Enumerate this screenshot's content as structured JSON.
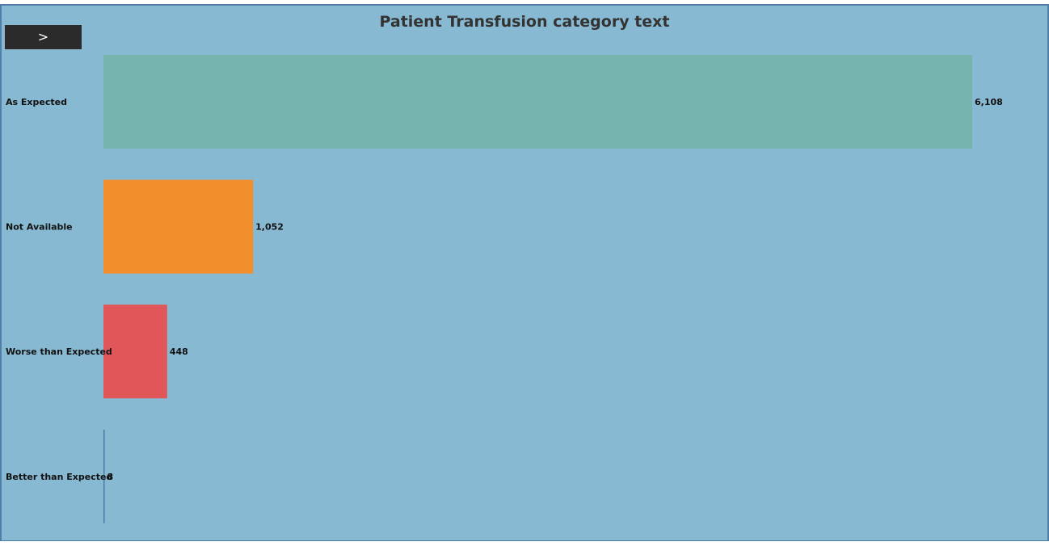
{
  "nav": {
    "expand_icon": "chevron-right-icon",
    "expand_glyph": ">"
  },
  "chart_data": {
    "type": "bar",
    "orientation": "horizontal",
    "title": "Patient Transfusion category text",
    "xlabel": "",
    "ylabel": "",
    "categories": [
      "As Expected",
      "Not Available",
      "Worse than Expected",
      "Better than Expected"
    ],
    "values": [
      6108,
      1052,
      448,
      8
    ],
    "value_labels": [
      "6,108",
      "1,052",
      "448",
      "8"
    ],
    "colors": [
      "#76b5ae",
      "#f28e2c",
      "#e15759",
      "#4e79a7"
    ],
    "xlim": [
      0,
      6108
    ],
    "grid": false,
    "legend": "none"
  }
}
